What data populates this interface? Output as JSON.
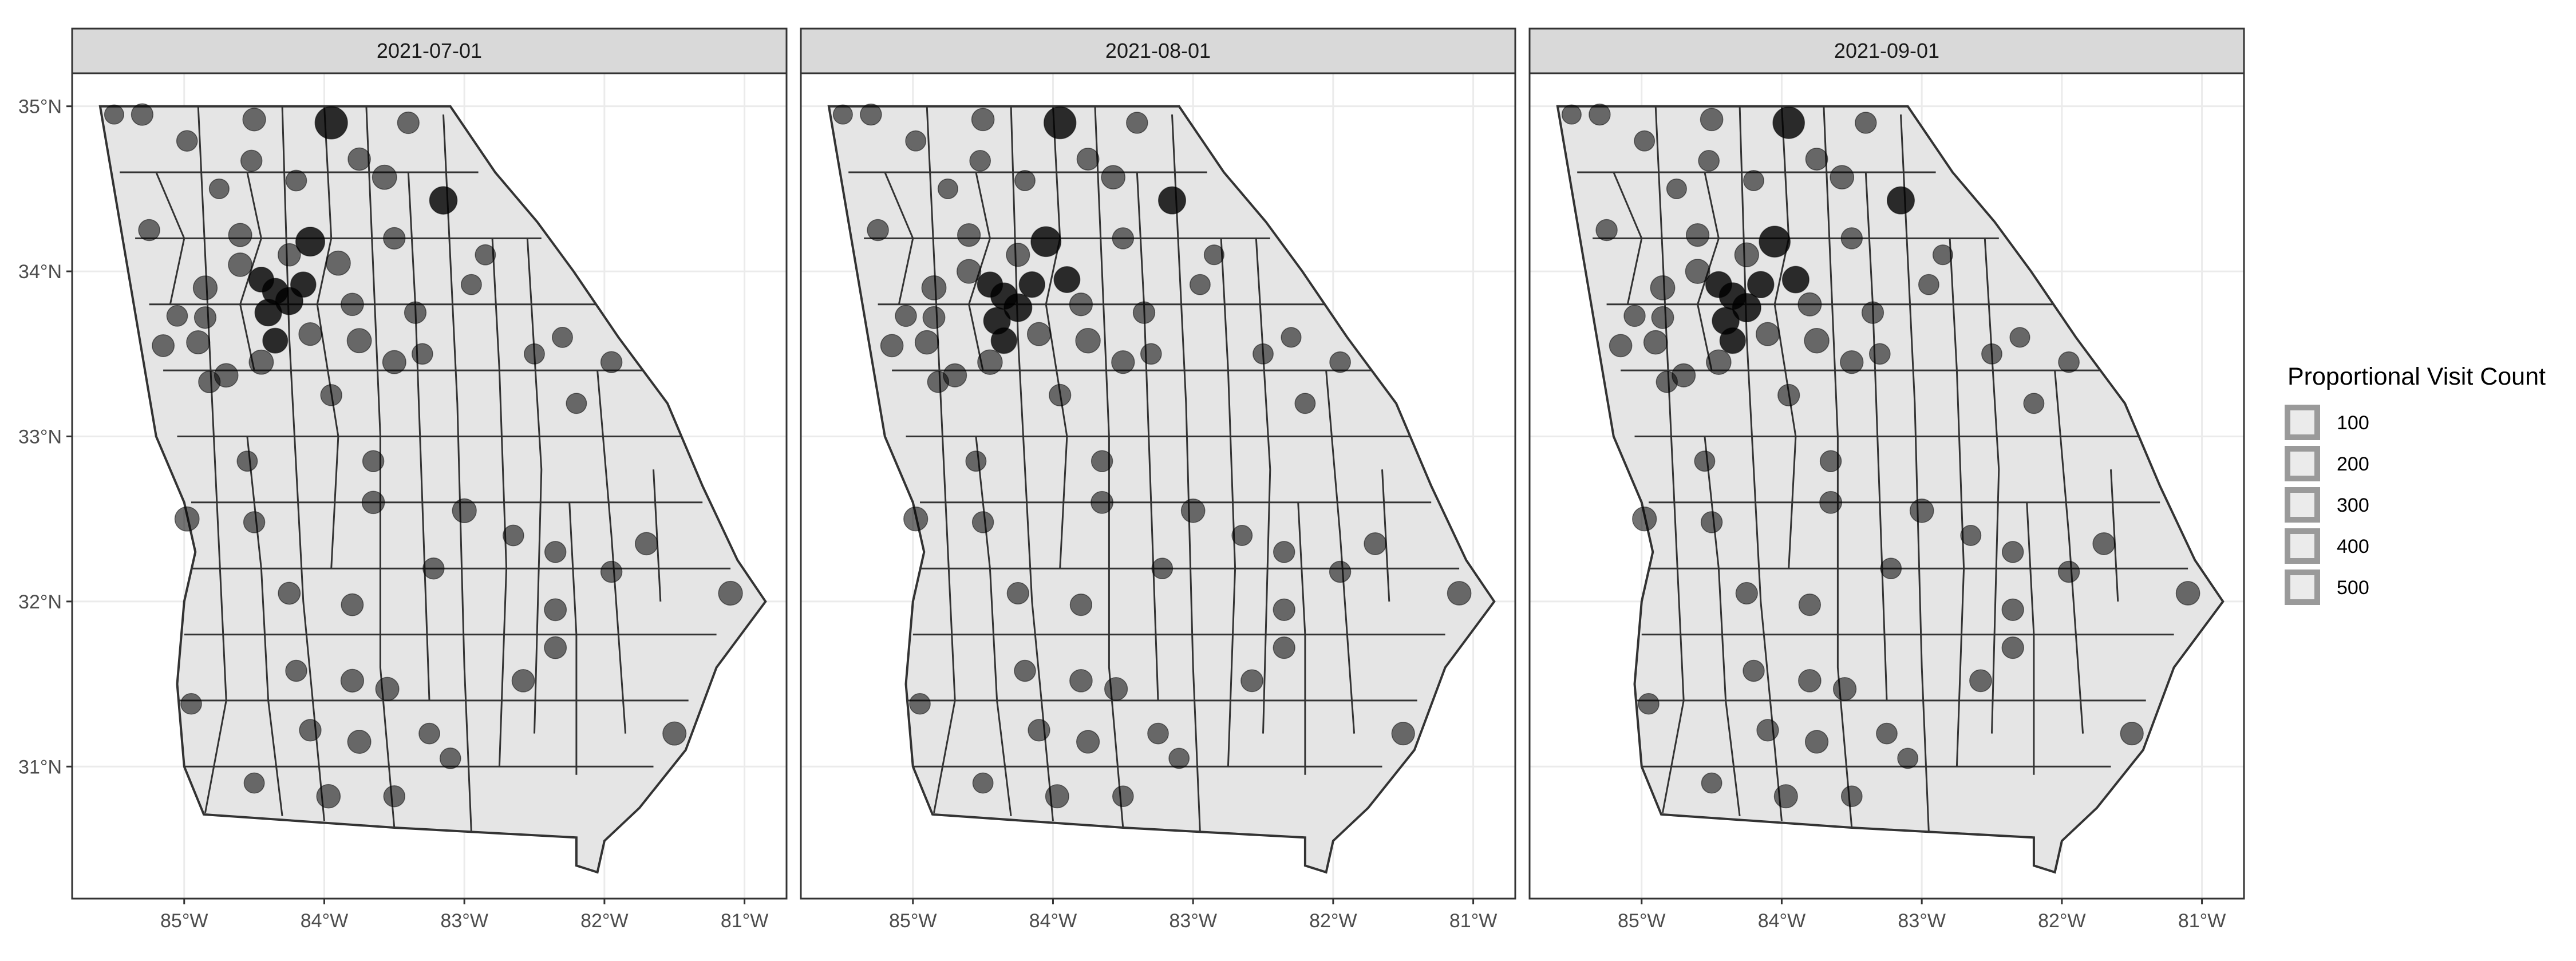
{
  "figure": {
    "panels": [
      {
        "label": "2021-07-01"
      },
      {
        "label": "2021-08-01"
      },
      {
        "label": "2021-09-01"
      }
    ],
    "x_ticks": [
      "85°W",
      "84°W",
      "83°W",
      "82°W",
      "81°W"
    ],
    "y_ticks": [
      "35°N",
      "34°N",
      "33°N",
      "32°N",
      "31°N"
    ],
    "legend": {
      "title": "Proportional Visit Count",
      "items": [
        "100",
        "200",
        "300",
        "400",
        "500"
      ]
    },
    "colors": {
      "state_fill": "#e5e5e5",
      "county_border": "#333333",
      "strip_fill": "#d9d9d9",
      "grid": "#ebebeb",
      "point": "#000000"
    }
  },
  "chart_data": {
    "type": "scatter",
    "subtype": "faceted bubble map of Georgia (US) counties",
    "x_unit": "longitude",
    "y_unit": "latitude",
    "xlim": [
      -85.8,
      -80.7
    ],
    "ylim": [
      30.2,
      35.2
    ],
    "x_ticks": [
      -85,
      -84,
      -83,
      -82,
      -81
    ],
    "y_ticks": [
      35,
      34,
      33,
      32,
      31
    ],
    "grid": true,
    "legend_position": "right",
    "size_legend": {
      "title": "Proportional Visit Count",
      "values": [
        100,
        200,
        300,
        400,
        500
      ]
    },
    "facets": [
      {
        "facet": "2021-07-01",
        "points": [
          [
            -85.5,
            34.95,
            110
          ],
          [
            -85.3,
            34.95,
            160
          ],
          [
            -84.5,
            34.92,
            190
          ],
          [
            -83.95,
            34.9,
            520
          ],
          [
            -83.4,
            34.9,
            160
          ],
          [
            -84.98,
            34.79,
            140
          ],
          [
            -84.52,
            34.67,
            150
          ],
          [
            -83.75,
            34.68,
            180
          ],
          [
            -83.57,
            34.57,
            230
          ],
          [
            -83.15,
            34.43,
            330
          ],
          [
            -84.2,
            34.55,
            140
          ],
          [
            -84.75,
            34.5,
            120
          ],
          [
            -85.25,
            34.25,
            150
          ],
          [
            -84.6,
            34.22,
            200
          ],
          [
            -84.1,
            34.18,
            380
          ],
          [
            -84.25,
            34.1,
            180
          ],
          [
            -83.9,
            34.05,
            230
          ],
          [
            -84.6,
            34.04,
            210
          ],
          [
            -84.45,
            33.95,
            250
          ],
          [
            -84.35,
            33.88,
            270
          ],
          [
            -84.25,
            33.82,
            320
          ],
          [
            -84.4,
            33.75,
            300
          ],
          [
            -84.15,
            33.92,
            260
          ],
          [
            -83.8,
            33.8,
            180
          ],
          [
            -84.85,
            33.9,
            220
          ],
          [
            -85.05,
            33.73,
            140
          ],
          [
            -84.85,
            33.72,
            160
          ],
          [
            -85.15,
            33.55,
            170
          ],
          [
            -84.9,
            33.57,
            200
          ],
          [
            -84.35,
            33.58,
            250
          ],
          [
            -84.1,
            33.62,
            190
          ],
          [
            -83.75,
            33.58,
            230
          ],
          [
            -83.5,
            33.45,
            200
          ],
          [
            -84.45,
            33.45,
            230
          ],
          [
            -84.7,
            33.37,
            210
          ],
          [
            -84.82,
            33.33,
            160
          ],
          [
            -83.95,
            33.25,
            150
          ],
          [
            -83.35,
            33.75,
            160
          ],
          [
            -83.5,
            34.2,
            160
          ],
          [
            -82.95,
            33.92,
            130
          ],
          [
            -83.3,
            33.5,
            140
          ],
          [
            -82.85,
            34.1,
            130
          ],
          [
            -82.5,
            33.5,
            130
          ],
          [
            -82.3,
            33.6,
            130
          ],
          [
            -82.2,
            33.2,
            130
          ],
          [
            -81.95,
            33.45,
            150
          ],
          [
            -84.55,
            32.85,
            130
          ],
          [
            -84.5,
            32.48,
            150
          ],
          [
            -84.98,
            32.5,
            230
          ],
          [
            -83.65,
            32.85,
            150
          ],
          [
            -83.22,
            32.2,
            150
          ],
          [
            -82.35,
            32.3,
            150
          ],
          [
            -81.7,
            32.35,
            180
          ],
          [
            -81.1,
            32.05,
            220
          ],
          [
            -83.65,
            32.6,
            180
          ],
          [
            -83.0,
            32.55,
            220
          ],
          [
            -82.65,
            32.4,
            140
          ],
          [
            -84.25,
            32.05,
            170
          ],
          [
            -83.8,
            31.98,
            170
          ],
          [
            -82.35,
            31.95,
            170
          ],
          [
            -81.95,
            32.18,
            150
          ],
          [
            -83.55,
            31.47,
            200
          ],
          [
            -83.8,
            31.52,
            190
          ],
          [
            -84.2,
            31.58,
            150
          ],
          [
            -84.95,
            31.38,
            140
          ],
          [
            -84.1,
            31.22,
            160
          ],
          [
            -83.75,
            31.15,
            200
          ],
          [
            -83.25,
            31.2,
            140
          ],
          [
            -82.58,
            31.52,
            180
          ],
          [
            -82.35,
            31.72,
            170
          ],
          [
            -81.5,
            31.2,
            200
          ],
          [
            -84.5,
            30.9,
            130
          ],
          [
            -83.97,
            30.82,
            210
          ],
          [
            -83.5,
            30.82,
            150
          ],
          [
            -83.1,
            31.05,
            140
          ]
        ]
      },
      {
        "facet": "2021-08-01",
        "points": [
          [
            -85.5,
            34.95,
            110
          ],
          [
            -85.3,
            34.95,
            150
          ],
          [
            -84.5,
            34.92,
            180
          ],
          [
            -83.95,
            34.9,
            500
          ],
          [
            -83.4,
            34.9,
            150
          ],
          [
            -84.98,
            34.79,
            130
          ],
          [
            -84.52,
            34.67,
            140
          ],
          [
            -83.75,
            34.68,
            170
          ],
          [
            -83.57,
            34.57,
            210
          ],
          [
            -83.15,
            34.43,
            320
          ],
          [
            -84.2,
            34.55,
            130
          ],
          [
            -84.75,
            34.5,
            120
          ],
          [
            -85.25,
            34.25,
            150
          ],
          [
            -84.6,
            34.22,
            190
          ],
          [
            -84.05,
            34.18,
            420
          ],
          [
            -84.25,
            34.1,
            200
          ],
          [
            -83.9,
            33.95,
            280
          ],
          [
            -84.6,
            34.0,
            220
          ],
          [
            -84.45,
            33.92,
            260
          ],
          [
            -84.35,
            33.85,
            290
          ],
          [
            -84.25,
            33.78,
            340
          ],
          [
            -84.4,
            33.7,
            300
          ],
          [
            -84.15,
            33.92,
            270
          ],
          [
            -83.8,
            33.8,
            190
          ],
          [
            -84.85,
            33.9,
            230
          ],
          [
            -85.05,
            33.73,
            150
          ],
          [
            -84.85,
            33.72,
            170
          ],
          [
            -85.15,
            33.55,
            180
          ],
          [
            -84.9,
            33.57,
            210
          ],
          [
            -84.35,
            33.58,
            270
          ],
          [
            -84.1,
            33.62,
            200
          ],
          [
            -83.75,
            33.58,
            240
          ],
          [
            -83.5,
            33.45,
            190
          ],
          [
            -84.45,
            33.45,
            240
          ],
          [
            -84.7,
            33.37,
            200
          ],
          [
            -84.82,
            33.33,
            150
          ],
          [
            -83.95,
            33.25,
            160
          ],
          [
            -83.35,
            33.75,
            160
          ],
          [
            -83.5,
            34.2,
            150
          ],
          [
            -82.95,
            33.92,
            130
          ],
          [
            -83.3,
            33.5,
            140
          ],
          [
            -82.85,
            34.1,
            120
          ],
          [
            -82.5,
            33.5,
            130
          ],
          [
            -82.3,
            33.6,
            120
          ],
          [
            -82.2,
            33.2,
            130
          ],
          [
            -81.95,
            33.45,
            140
          ],
          [
            -84.55,
            32.85,
            130
          ],
          [
            -84.5,
            32.48,
            150
          ],
          [
            -84.98,
            32.5,
            220
          ],
          [
            -83.65,
            32.85,
            150
          ],
          [
            -83.22,
            32.2,
            140
          ],
          [
            -82.35,
            32.3,
            150
          ],
          [
            -81.7,
            32.35,
            170
          ],
          [
            -81.1,
            32.05,
            210
          ],
          [
            -83.65,
            32.6,
            170
          ],
          [
            -83.0,
            32.55,
            210
          ],
          [
            -82.65,
            32.4,
            130
          ],
          [
            -84.25,
            32.05,
            160
          ],
          [
            -83.8,
            31.98,
            160
          ],
          [
            -82.35,
            31.95,
            160
          ],
          [
            -81.95,
            32.18,
            150
          ],
          [
            -83.55,
            31.47,
            190
          ],
          [
            -83.8,
            31.52,
            180
          ],
          [
            -84.2,
            31.58,
            150
          ],
          [
            -84.95,
            31.38,
            140
          ],
          [
            -84.1,
            31.22,
            160
          ],
          [
            -83.75,
            31.15,
            190
          ],
          [
            -83.25,
            31.2,
            140
          ],
          [
            -82.58,
            31.52,
            170
          ],
          [
            -82.35,
            31.72,
            160
          ],
          [
            -81.5,
            31.2,
            190
          ],
          [
            -84.5,
            30.9,
            130
          ],
          [
            -83.97,
            30.82,
            200
          ],
          [
            -83.5,
            30.82,
            140
          ],
          [
            -83.1,
            31.05,
            130
          ]
        ]
      },
      {
        "facet": "2021-09-01",
        "points": [
          [
            -85.5,
            34.95,
            110
          ],
          [
            -85.3,
            34.95,
            150
          ],
          [
            -84.5,
            34.92,
            180
          ],
          [
            -83.95,
            34.9,
            480
          ],
          [
            -83.4,
            34.9,
            150
          ],
          [
            -84.98,
            34.79,
            130
          ],
          [
            -84.52,
            34.67,
            140
          ],
          [
            -83.75,
            34.68,
            170
          ],
          [
            -83.57,
            34.57,
            210
          ],
          [
            -83.15,
            34.43,
            320
          ],
          [
            -84.2,
            34.55,
            130
          ],
          [
            -84.75,
            34.5,
            120
          ],
          [
            -85.25,
            34.25,
            150
          ],
          [
            -84.6,
            34.22,
            190
          ],
          [
            -84.05,
            34.18,
            460
          ],
          [
            -84.25,
            34.1,
            220
          ],
          [
            -83.9,
            33.95,
            300
          ],
          [
            -84.6,
            34.0,
            230
          ],
          [
            -84.45,
            33.92,
            280
          ],
          [
            -84.35,
            33.85,
            300
          ],
          [
            -84.25,
            33.78,
            360
          ],
          [
            -84.4,
            33.7,
            310
          ],
          [
            -84.15,
            33.92,
            290
          ],
          [
            -83.8,
            33.8,
            200
          ],
          [
            -84.85,
            33.9,
            230
          ],
          [
            -85.05,
            33.73,
            150
          ],
          [
            -84.85,
            33.72,
            170
          ],
          [
            -85.15,
            33.55,
            180
          ],
          [
            -84.9,
            33.57,
            210
          ],
          [
            -84.35,
            33.58,
            270
          ],
          [
            -84.1,
            33.62,
            200
          ],
          [
            -83.75,
            33.58,
            240
          ],
          [
            -83.5,
            33.45,
            190
          ],
          [
            -84.45,
            33.45,
            240
          ],
          [
            -84.7,
            33.37,
            200
          ],
          [
            -84.82,
            33.33,
            150
          ],
          [
            -83.95,
            33.25,
            160
          ],
          [
            -83.35,
            33.75,
            160
          ],
          [
            -83.5,
            34.2,
            150
          ],
          [
            -82.95,
            33.92,
            130
          ],
          [
            -83.3,
            33.5,
            140
          ],
          [
            -82.85,
            34.1,
            120
          ],
          [
            -82.5,
            33.5,
            130
          ],
          [
            -82.3,
            33.6,
            120
          ],
          [
            -82.2,
            33.2,
            130
          ],
          [
            -81.95,
            33.45,
            140
          ],
          [
            -84.55,
            32.85,
            130
          ],
          [
            -84.5,
            32.48,
            150
          ],
          [
            -84.98,
            32.5,
            220
          ],
          [
            -83.65,
            32.85,
            150
          ],
          [
            -83.22,
            32.2,
            140
          ],
          [
            -82.35,
            32.3,
            150
          ],
          [
            -81.7,
            32.35,
            170
          ],
          [
            -81.1,
            32.05,
            210
          ],
          [
            -83.65,
            32.6,
            170
          ],
          [
            -83.0,
            32.55,
            210
          ],
          [
            -82.65,
            32.4,
            130
          ],
          [
            -84.25,
            32.05,
            160
          ],
          [
            -83.8,
            31.98,
            160
          ],
          [
            -82.35,
            31.95,
            160
          ],
          [
            -81.95,
            32.18,
            150
          ],
          [
            -83.55,
            31.47,
            190
          ],
          [
            -83.8,
            31.52,
            180
          ],
          [
            -84.2,
            31.58,
            150
          ],
          [
            -84.95,
            31.38,
            140
          ],
          [
            -84.1,
            31.22,
            160
          ],
          [
            -83.75,
            31.15,
            190
          ],
          [
            -83.25,
            31.2,
            140
          ],
          [
            -82.58,
            31.52,
            170
          ],
          [
            -82.35,
            31.72,
            160
          ],
          [
            -81.5,
            31.2,
            190
          ],
          [
            -84.5,
            30.9,
            130
          ],
          [
            -83.97,
            30.82,
            200
          ],
          [
            -83.5,
            30.82,
            140
          ],
          [
            -83.1,
            31.05,
            130
          ]
        ]
      }
    ]
  }
}
